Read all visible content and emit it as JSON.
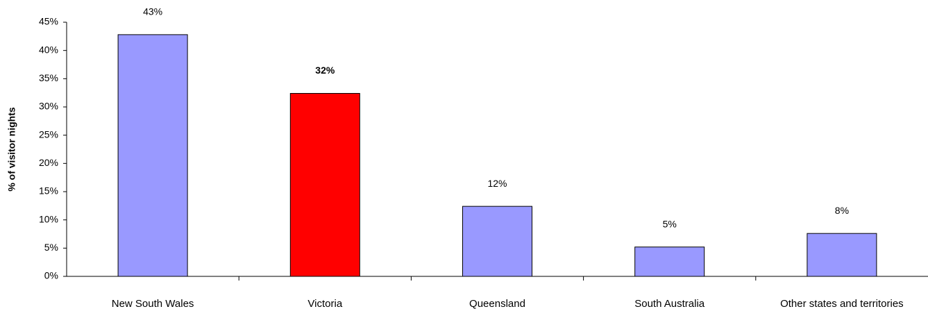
{
  "chart_data": {
    "type": "bar",
    "y_label": "% of visitor nights",
    "categories": [
      "New South Wales",
      "Victoria",
      "Queensland",
      "South Australia",
      "Other states and territories"
    ],
    "values": [
      42.8,
      32.4,
      12.4,
      5.2,
      7.6
    ],
    "value_labels": [
      "43%",
      "32%",
      "12%",
      "5%",
      "8%"
    ],
    "colors": [
      "#9999ff",
      "#ff0000",
      "#9999ff",
      "#9999ff",
      "#9999ff"
    ],
    "bold_labels": [
      false,
      true,
      false,
      false,
      false
    ],
    "ylim": [
      0,
      45
    ],
    "yticks": [
      {
        "value": 0,
        "label": "0%"
      },
      {
        "value": 5,
        "label": "5%"
      },
      {
        "value": 10,
        "label": "10%"
      },
      {
        "value": 15,
        "label": "15%"
      },
      {
        "value": 20,
        "label": "20%"
      },
      {
        "value": 25,
        "label": "25%"
      },
      {
        "value": 30,
        "label": "30%"
      },
      {
        "value": 35,
        "label": "35%"
      },
      {
        "value": 40,
        "label": "40%"
      },
      {
        "value": 45,
        "label": "45%"
      }
    ],
    "grid": false
  }
}
